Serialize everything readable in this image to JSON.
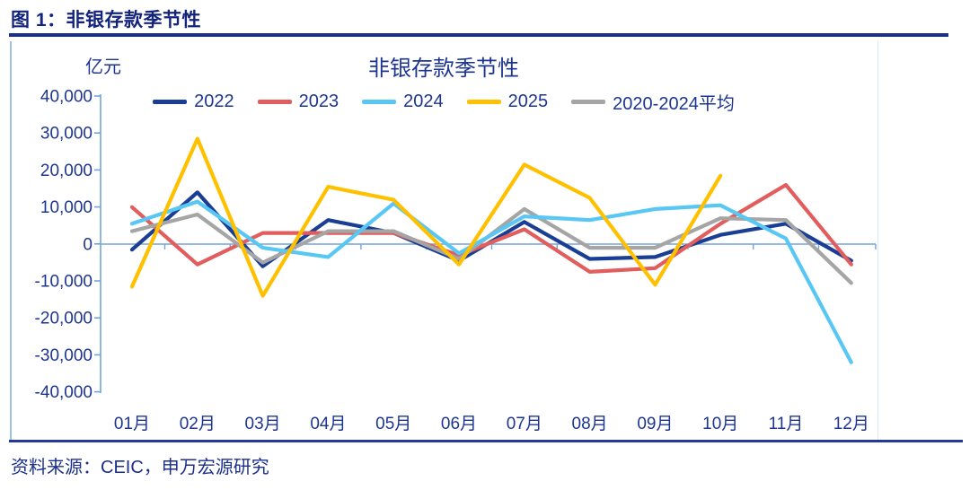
{
  "page": {
    "figure_label": "图 1：非银存款季节性",
    "source_note": "资料来源：CEIC，申万宏源研究"
  },
  "colors": {
    "text_blue": "#1d3590",
    "header_blue": "#14247c",
    "axis_blue": "#74a4da",
    "series_2022": "#1a3e94",
    "series_2023": "#e25d5d",
    "series_2024": "#58c7f3",
    "series_2025": "#ffc000",
    "series_avg": "#a5a5a5"
  },
  "chart_data": {
    "type": "line",
    "title": "非银存款季节性",
    "unit_label": "亿元",
    "xlabel": "",
    "ylabel": "亿元",
    "categories": [
      "01月",
      "02月",
      "03月",
      "04月",
      "05月",
      "06月",
      "07月",
      "08月",
      "09月",
      "10月",
      "11月",
      "12月"
    ],
    "y_axis": {
      "min": -40000,
      "max": 40000,
      "step": 10000,
      "tick_labels": [
        "40,000",
        "30,000",
        "20,000",
        "10,000",
        "0",
        "-10,000",
        "-20,000",
        "-30,000",
        "-40,000"
      ]
    },
    "grid": false,
    "legend_position": "top",
    "series": [
      {
        "name": "2022",
        "color": "#1a3e94",
        "values": [
          -1500,
          14000,
          -6000,
          6500,
          3000,
          -4500,
          6000,
          -4000,
          -3500,
          2500,
          5500,
          -4500
        ]
      },
      {
        "name": "2023",
        "color": "#e25d5d",
        "values": [
          10000,
          -5500,
          3000,
          3000,
          3000,
          -3000,
          4000,
          -7500,
          -6500,
          5500,
          16000,
          -5500
        ]
      },
      {
        "name": "2024",
        "color": "#58c7f3",
        "values": [
          5500,
          11500,
          -1000,
          -3500,
          11000,
          -2500,
          7500,
          6500,
          9500,
          10500,
          1500,
          -32000
        ]
      },
      {
        "name": "2025",
        "color": "#ffc000",
        "values": [
          -11500,
          28500,
          -14000,
          15500,
          12000,
          -5500,
          21500,
          12500,
          -11000,
          18500,
          null,
          null
        ]
      },
      {
        "name": "2020-2024平均",
        "color": "#a5a5a5",
        "values": [
          3500,
          8000,
          -5000,
          3500,
          3500,
          -4000,
          9500,
          -1000,
          -1000,
          7000,
          6500,
          -10500
        ]
      }
    ]
  }
}
